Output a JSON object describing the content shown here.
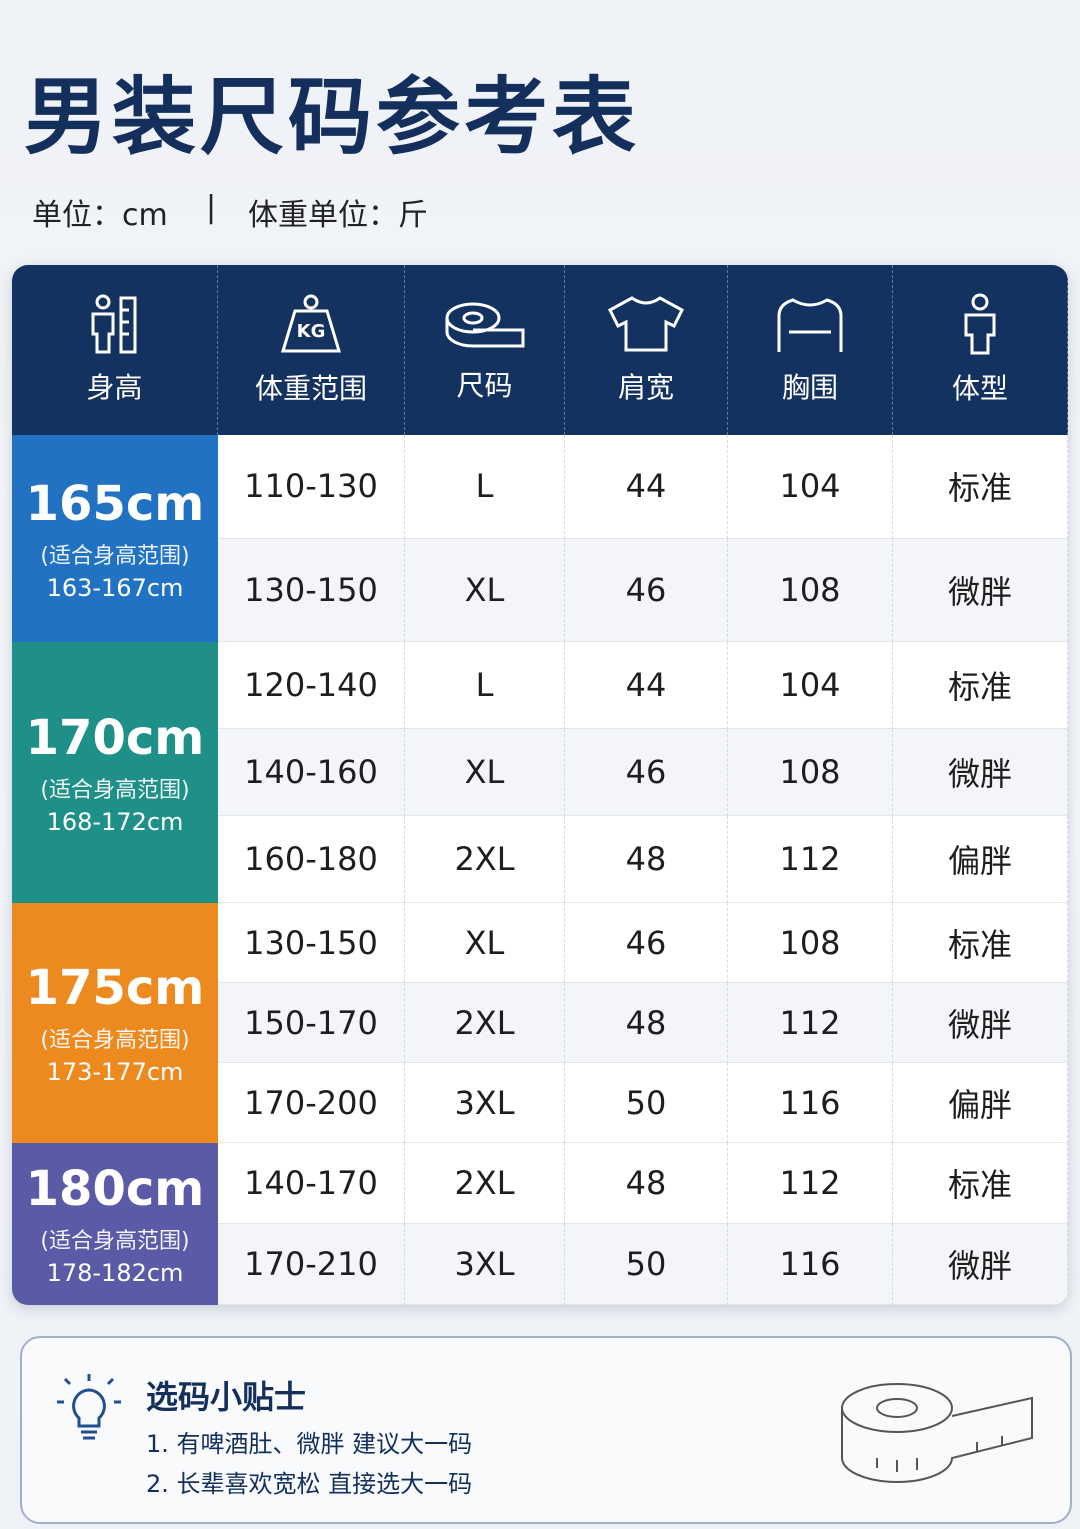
{
  "header": {
    "title": "男装尺码参考表",
    "unit": "单位：cm",
    "separator": "|",
    "weight_unit": "体重单位：斤"
  },
  "table": {
    "columns": [
      "身高",
      "体重范围",
      "尺码",
      "肩宽",
      "胸围",
      "体型"
    ],
    "groups": [
      {
        "height": "165cm",
        "note": "(适合身高范围)",
        "range": "163-167cm",
        "color": "#2272c3",
        "rows": [
          [
            "110-130",
            "L",
            44,
            104,
            "标准"
          ],
          [
            "130-150",
            "XL",
            46,
            108,
            "微胖"
          ]
        ]
      },
      {
        "height": "170cm",
        "note": "(适合身高范围)",
        "range": "168-172cm",
        "color": "#1f9088",
        "rows": [
          [
            "120-140",
            "L",
            44,
            104,
            "标准"
          ],
          [
            "140-160",
            "XL",
            46,
            108,
            "微胖"
          ],
          [
            "160-180",
            "2XL",
            48,
            112,
            "偏胖"
          ]
        ]
      },
      {
        "height": "175cm",
        "note": "(适合身高范围)",
        "range": "173-177cm",
        "color": "#ec8a1f",
        "rows": [
          [
            "130-150",
            "XL",
            46,
            108,
            "标准"
          ],
          [
            "150-170",
            "2XL",
            48,
            112,
            "微胖"
          ],
          [
            "170-200",
            "3XL",
            50,
            116,
            "偏胖"
          ]
        ]
      },
      {
        "height": "180cm",
        "note": "(适合身高范围)",
        "range": "178-182cm",
        "color": "#5b5aa6",
        "rows": [
          [
            "140-170",
            "2XL",
            48,
            112,
            "标准"
          ],
          [
            "170-210",
            "3XL",
            50,
            116,
            "微胖"
          ]
        ]
      }
    ]
  },
  "tips": {
    "title": "选码小贴士",
    "items": [
      "1. 有啤酒肚、微胖 建议大一码",
      "2. 长辈喜欢宽松 直接选大一码"
    ]
  }
}
